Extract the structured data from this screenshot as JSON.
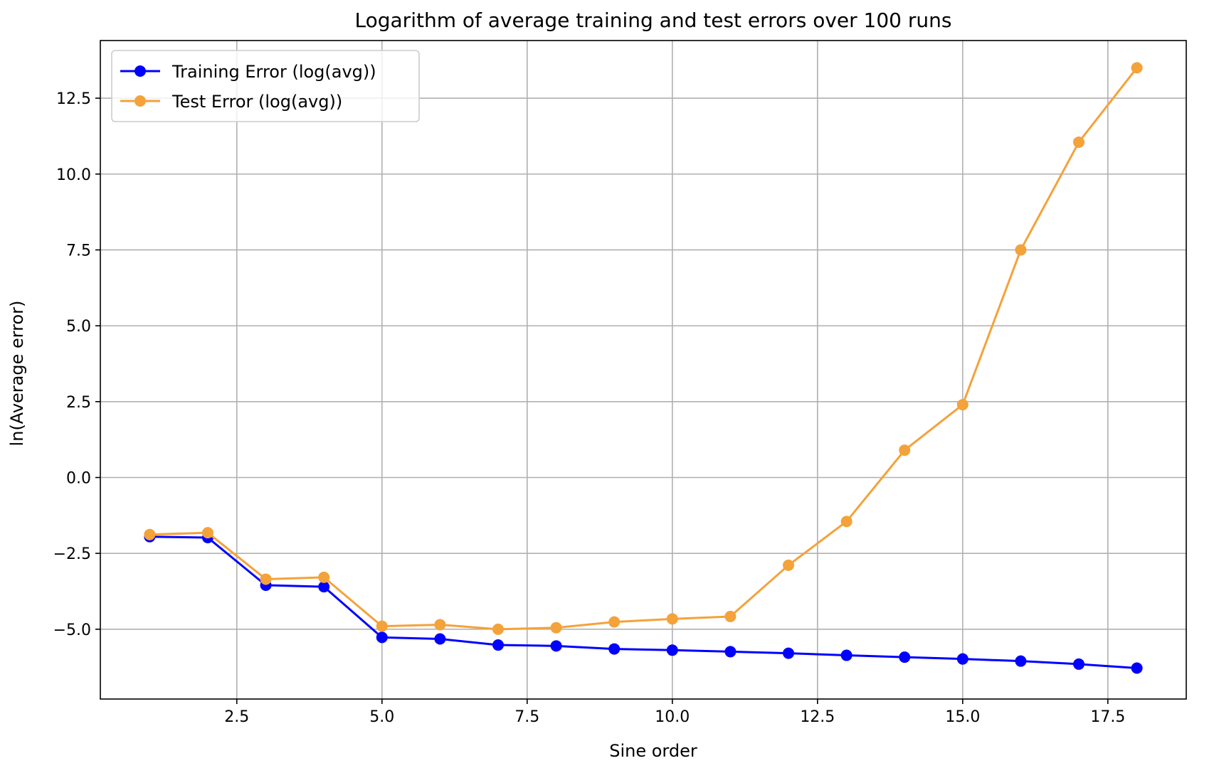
{
  "chart_data": {
    "type": "line",
    "title": "Logarithm of average training and test errors over 100 runs",
    "xlabel": "Sine order",
    "ylabel": "ln(Average error)",
    "xlim": [
      0.15,
      18.85
    ],
    "ylim": [
      -7.3,
      14.4
    ],
    "xticks": [
      2.5,
      5.0,
      7.5,
      10.0,
      12.5,
      15.0,
      17.5
    ],
    "xtick_labels": [
      "2.5",
      "5.0",
      "7.5",
      "10.0",
      "12.5",
      "15.0",
      "17.5"
    ],
    "yticks": [
      -5.0,
      -2.5,
      0.0,
      2.5,
      5.0,
      7.5,
      10.0,
      12.5
    ],
    "ytick_labels": [
      "−5.0",
      "−2.5",
      "0.0",
      "2.5",
      "5.0",
      "7.5",
      "10.0",
      "12.5"
    ],
    "grid": true,
    "legend_position": "top-left",
    "x": [
      1,
      2,
      3,
      4,
      5,
      6,
      7,
      8,
      9,
      10,
      11,
      12,
      13,
      14,
      15,
      16,
      17,
      18
    ],
    "series": [
      {
        "name": "Training Error (log(avg))",
        "color": "#0000ff",
        "marker": "circle",
        "values": [
          -1.95,
          -1.98,
          -3.55,
          -3.6,
          -5.27,
          -5.32,
          -5.52,
          -5.55,
          -5.65,
          -5.69,
          -5.74,
          -5.79,
          -5.86,
          -5.92,
          -5.98,
          -6.05,
          -6.15,
          -6.28
        ]
      },
      {
        "name": "Test Error (log(avg))",
        "color": "#f4a23a",
        "marker": "circle",
        "values": [
          -1.88,
          -1.82,
          -3.35,
          -3.29,
          -4.9,
          -4.85,
          -5.0,
          -4.95,
          -4.76,
          -4.66,
          -4.58,
          -2.89,
          -1.45,
          0.9,
          2.4,
          7.5,
          11.05,
          13.5
        ]
      }
    ]
  }
}
